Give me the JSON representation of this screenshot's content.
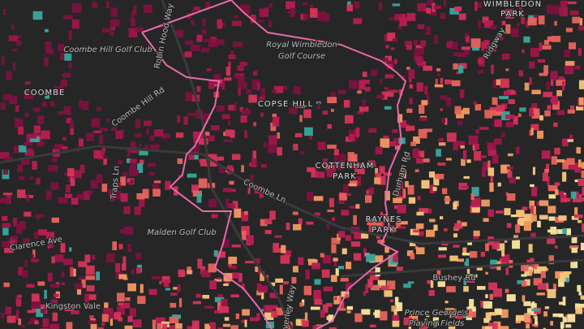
{
  "labels": [
    {
      "text": "WIMBLEDON"
    },
    {
      "text": "PARK"
    },
    {
      "text": "Robin Hood Way"
    },
    {
      "text": "Royal Wimbledon"
    },
    {
      "text": "Golf Course"
    },
    {
      "text": "Coombe Hill Golf Club"
    },
    {
      "text": "COOMBE"
    },
    {
      "text": "Coombe Hill Rd"
    },
    {
      "text": "COPSE HILL"
    },
    {
      "text": "Traps Ln"
    },
    {
      "text": "COTTENHAM"
    },
    {
      "text": "PARK"
    },
    {
      "text": "Coombe Ln"
    },
    {
      "text": "Durham Rd"
    },
    {
      "text": "Ridgway"
    },
    {
      "text": "Malden Golf Club"
    },
    {
      "text": "RAYNES"
    },
    {
      "text": "PARK"
    },
    {
      "text": "Bushey Rd"
    },
    {
      "text": "Prince George's"
    },
    {
      "text": "Playing Fields"
    },
    {
      "text": "Clarence Ave"
    },
    {
      "text": "Beverley Way"
    },
    {
      "text": "Kingston Vale"
    }
  ]
}
